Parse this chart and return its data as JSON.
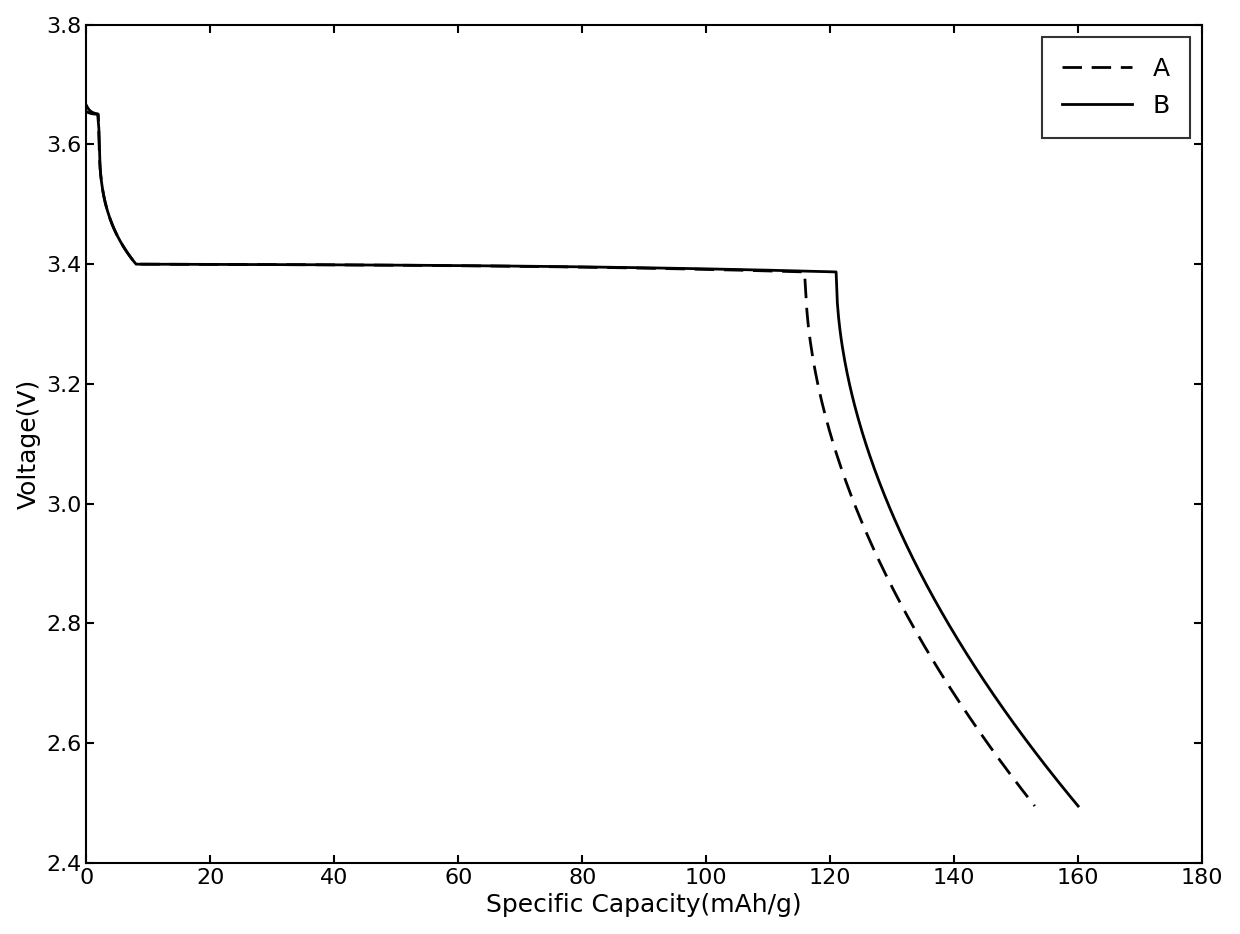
{
  "xlabel": "Specific Capacity(mAh/g)",
  "ylabel": "Voltage(V)",
  "xlim": [
    0,
    180
  ],
  "ylim": [
    2.4,
    3.8
  ],
  "xticks": [
    0,
    20,
    40,
    60,
    80,
    100,
    120,
    140,
    160,
    180
  ],
  "yticks": [
    2.4,
    2.6,
    2.8,
    3.0,
    3.2,
    3.4,
    3.6,
    3.8
  ],
  "legend_labels": [
    "A",
    "B"
  ],
  "line_color": "#000000",
  "background_color": "#ffffff",
  "axis_label_fontsize": 18,
  "tick_fontsize": 16,
  "legend_fontsize": 18,
  "linewidth": 2.0,
  "curve_A_end_capacity": 153,
  "curve_B_end_capacity": 160
}
